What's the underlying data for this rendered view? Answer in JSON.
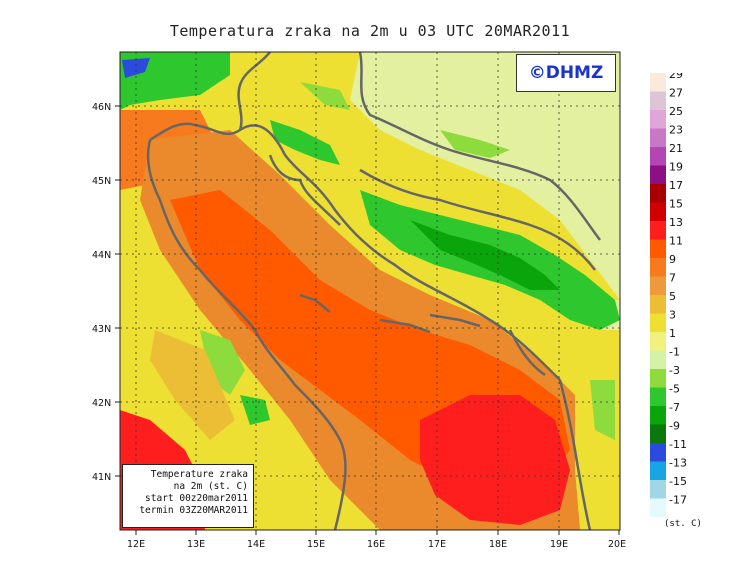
{
  "title": "Temperatura zraka na 2m u 03 UTC 20MAR2011",
  "logo_text": "©DHMZ",
  "info_box": {
    "line1": "Temperature zraka",
    "line2": "na 2m (st. C)",
    "line3": "start 00z20mar2011",
    "line4": "termin 03Z20MAR2011"
  },
  "axes": {
    "lat_labels": [
      "46N",
      "45N",
      "44N",
      "43N",
      "42N",
      "41N"
    ],
    "lon_labels": [
      "12E",
      "13E",
      "14E",
      "15E",
      "16E",
      "17E",
      "18E",
      "19E",
      "20E"
    ],
    "lat_range": [
      40.25,
      46.75
    ],
    "lon_range": [
      11.75,
      20.0
    ]
  },
  "legend": {
    "unit": "(st. C)",
    "labels": [
      "29",
      "27",
      "25",
      "23",
      "21",
      "19",
      "17",
      "15",
      "13",
      "11",
      "9",
      "7",
      "5",
      "3",
      "1",
      "-1",
      "-3",
      "-5",
      "-7",
      "-9",
      "-11",
      "-13",
      "-15",
      "-17"
    ],
    "colors": [
      "#fbe9dc",
      "#ddc5d8",
      "#e0a6d9",
      "#c978c8",
      "#b545b5",
      "#8c0f84",
      "#a80000",
      "#d00000",
      "#ff1e1e",
      "#ff5a00",
      "#f77a1e",
      "#eb9a3c",
      "#ebbe36",
      "#ede033",
      "#f1f17f",
      "#d6f2a6",
      "#8ddb3c",
      "#2ec82e",
      "#0aa50a",
      "#0a780a",
      "#2a4bdc",
      "#19a4e4",
      "#a0d6e6",
      "#e6fafa"
    ]
  },
  "colors": {
    "sea_warm": "#ff5a00",
    "sea_mid": "#eb8a2c",
    "sea_hot": "#ff1e1e",
    "land_yellow": "#ede033",
    "land_pale": "#e3f0a0",
    "land_green": "#2ec82e",
    "coast": "#666666",
    "logo": "#1a35c8"
  }
}
